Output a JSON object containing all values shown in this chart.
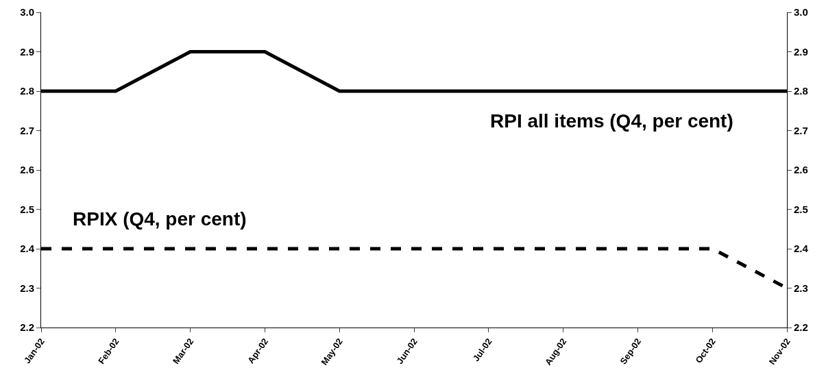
{
  "chart_data": {
    "type": "line",
    "categories": [
      "Jan-02",
      "Feb-02",
      "Mar-02",
      "Apr-02",
      "May-02",
      "Jun-02",
      "Jul-02",
      "Aug-02",
      "Sep-02",
      "Oct-02",
      "Nov-02"
    ],
    "series": [
      {
        "name": "RPI all items (Q4, per cent)",
        "color": "#000000",
        "line_style": "solid",
        "values": [
          2.8,
          2.8,
          2.9,
          2.9,
          2.8,
          2.8,
          2.8,
          2.8,
          2.8,
          2.8,
          2.8
        ]
      },
      {
        "name": "RPIX (Q4, per cent)",
        "color": "#000000",
        "line_style": "dashed",
        "values": [
          2.4,
          2.4,
          2.4,
          2.4,
          2.4,
          2.4,
          2.4,
          2.4,
          2.4,
          2.4,
          2.3
        ]
      }
    ],
    "ylim": [
      2.2,
      3.0
    ],
    "yticks": [
      {
        "value": 2.2,
        "label": "2.2"
      },
      {
        "value": 2.3,
        "label": "2.3"
      },
      {
        "value": 2.4,
        "label": "2.4"
      },
      {
        "value": 2.5,
        "label": "2.5"
      },
      {
        "value": 2.6,
        "label": "2.6"
      },
      {
        "value": 2.7,
        "label": "2.7"
      },
      {
        "value": 2.8,
        "label": "2.8"
      },
      {
        "value": 2.9,
        "label": "2.9"
      },
      {
        "value": 3.0,
        "label": "3.0"
      }
    ],
    "y2lim": [
      2.2,
      3.0
    ],
    "y2ticks": [
      {
        "value": 2.2,
        "label": "2.2"
      },
      {
        "value": 2.3,
        "label": "2.3"
      },
      {
        "value": 2.4,
        "label": "2.4"
      },
      {
        "value": 2.5,
        "label": "2.5"
      },
      {
        "value": 2.6,
        "label": "2.6"
      },
      {
        "value": 2.7,
        "label": "2.7"
      },
      {
        "value": 2.8,
        "label": "2.8"
      },
      {
        "value": 2.9,
        "label": "2.9"
      },
      {
        "value": 3.0,
        "label": "3.0"
      }
    ],
    "grid": false,
    "legend": false,
    "marker": "none"
  }
}
